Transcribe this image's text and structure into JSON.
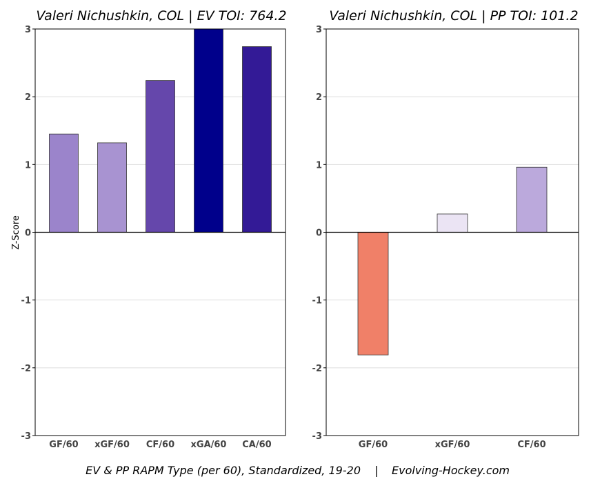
{
  "footer": {
    "caption": "EV & PP RAPM Type (per 60), Standardized, 19-20",
    "separator": "|",
    "source": "Evolving-Hockey.com"
  },
  "chart_data": [
    {
      "type": "bar",
      "title": "Valeri Nichushkin, COL  |  EV TOI: 764.2",
      "ylabel": "Z-Score",
      "xlabel": "",
      "ylim": [
        -3,
        3
      ],
      "yticks": [
        -3,
        -2,
        -1,
        0,
        1,
        2,
        3
      ],
      "grid": true,
      "categories": [
        "GF/60",
        "xGF/60",
        "CF/60",
        "xGA/60",
        "CA/60"
      ],
      "values": [
        1.45,
        1.32,
        2.24,
        3.0,
        2.74
      ],
      "colors": [
        "#9b84cb",
        "#a893d1",
        "#6547ab",
        "#00008b",
        "#331a96"
      ]
    },
    {
      "type": "bar",
      "title": "Valeri Nichushkin, COL  |  PP TOI: 101.2",
      "ylabel": "",
      "xlabel": "",
      "ylim": [
        -3,
        3
      ],
      "yticks": [
        -3,
        -2,
        -1,
        0,
        1,
        2,
        3
      ],
      "grid": true,
      "categories": [
        "GF/60",
        "xGF/60",
        "CF/60"
      ],
      "values": [
        -1.81,
        0.27,
        0.96
      ],
      "colors": [
        "#f08068",
        "#ebe4f4",
        "#bba9dc"
      ]
    }
  ]
}
